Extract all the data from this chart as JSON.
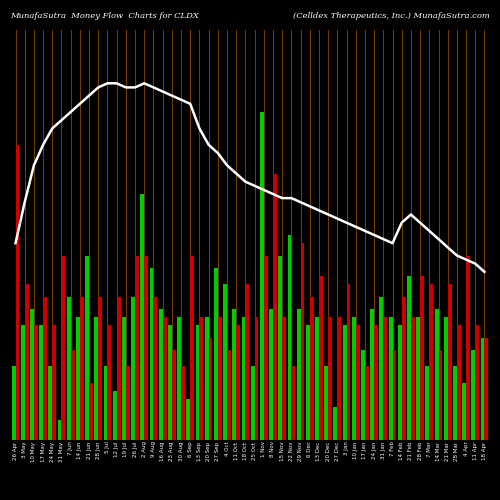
{
  "title_left": "MunafaSutra  Money Flow  Charts for CLDX",
  "title_right": "(Celldex Therapeutics, Inc.) MunafaSutra.com",
  "background_color": "#000000",
  "grid_color": "#8B4500",
  "line_color": "#ffffff",
  "categories": [
    "26 Apr",
    "3 May",
    "10 May",
    "17 May",
    "24 May",
    "31 May",
    "7 Jun",
    "14 Jun",
    "21 Jun",
    "28 Jun",
    "5 Jul",
    "12 Jul",
    "19 Jul",
    "26 Jul",
    "2 Aug",
    "9 Aug",
    "16 Aug",
    "23 Aug",
    "30 Aug",
    "6 Sep",
    "13 Sep",
    "20 Sep",
    "27 Sep",
    "4 Oct",
    "11 Oct",
    "18 Oct",
    "25 Oct",
    "1 Nov",
    "8 Nov",
    "15 Nov",
    "22 Nov",
    "29 Nov",
    "6 Dec",
    "13 Dec",
    "20 Dec",
    "27 Dec",
    "3 Jan",
    "10 Jan",
    "17 Jan",
    "24 Jan",
    "31 Jan",
    "7 Feb",
    "14 Feb",
    "21 Feb",
    "28 Feb",
    "7 Mar",
    "14 Mar",
    "21 Mar",
    "28 Mar",
    "4 Apr",
    "11 Apr",
    "18 Apr"
  ],
  "green_bars": [
    18,
    28,
    32,
    28,
    18,
    5,
    35,
    30,
    45,
    30,
    18,
    12,
    30,
    35,
    60,
    42,
    32,
    28,
    30,
    10,
    28,
    30,
    42,
    38,
    32,
    30,
    18,
    80,
    32,
    45,
    50,
    32,
    28,
    30,
    18,
    8,
    28,
    30,
    22,
    32,
    35,
    30,
    28,
    40,
    30,
    18,
    32,
    30,
    18,
    14,
    22,
    25
  ],
  "red_bars": [
    72,
    38,
    28,
    35,
    28,
    45,
    22,
    35,
    14,
    35,
    28,
    35,
    18,
    45,
    45,
    35,
    30,
    22,
    18,
    45,
    30,
    25,
    30,
    22,
    28,
    38,
    30,
    45,
    65,
    30,
    18,
    48,
    35,
    40,
    30,
    30,
    38,
    28,
    18,
    28,
    30,
    22,
    35,
    30,
    40,
    38,
    22,
    38,
    28,
    45,
    28,
    25
  ],
  "line_values": [
    48,
    58,
    67,
    72,
    76,
    78,
    80,
    82,
    84,
    86,
    87,
    87,
    86,
    86,
    87,
    86,
    85,
    84,
    83,
    82,
    76,
    72,
    70,
    67,
    65,
    63,
    62,
    61,
    60,
    59,
    59,
    58,
    57,
    56,
    55,
    54,
    53,
    52,
    51,
    50,
    49,
    48,
    53,
    55,
    53,
    51,
    49,
    47,
    45,
    44,
    43,
    41
  ],
  "ylim": [
    0,
    100
  ],
  "bar_colors_green": "#00cc00",
  "bar_colors_red": "#cc0000"
}
